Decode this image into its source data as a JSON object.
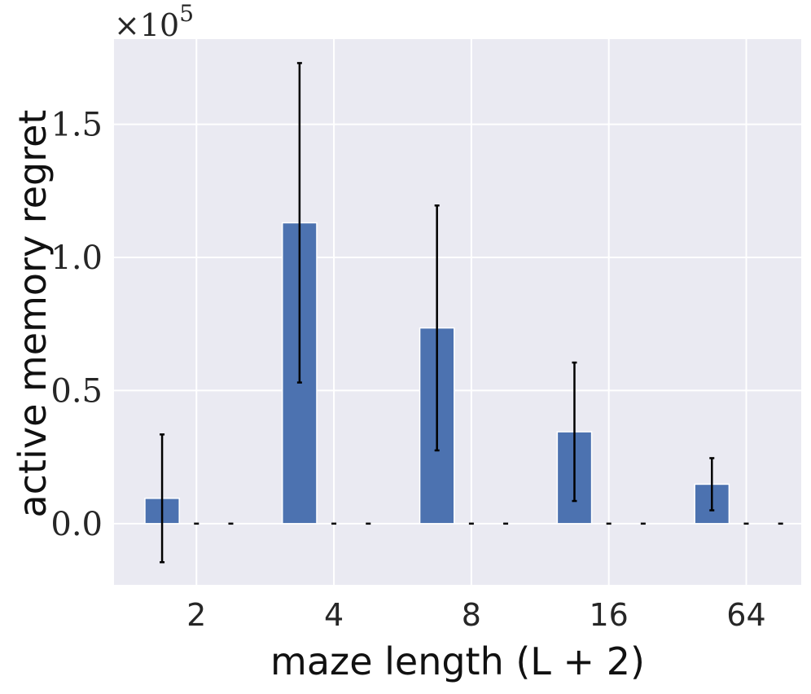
{
  "chart_data": {
    "type": "bar",
    "categories": [
      "2",
      "4",
      "8",
      "16",
      "64"
    ],
    "series": [
      {
        "values": [
          9500,
          113000,
          73500,
          34500,
          14800
        ],
        "error": [
          24000,
          60000,
          46000,
          26000,
          9800
        ],
        "color": "#4c72b0"
      },
      {
        "values": [
          0,
          0,
          0,
          0,
          0
        ],
        "error": [
          0,
          0,
          0,
          0,
          0
        ],
        "color": "#4c72b0"
      },
      {
        "values": [
          0,
          0,
          0,
          0,
          0
        ],
        "error": [
          0,
          0,
          0,
          0,
          0
        ],
        "color": "#4c72b0"
      }
    ],
    "xlabel": "maze length (L + 2)",
    "ylabel": "active memory regret",
    "y_scale_label": "×10^5",
    "y_scale_base": "×10",
    "y_scale_exp": "5",
    "y_multiplier": 100000,
    "ylim": [
      -23000,
      182000
    ],
    "yticks": [
      0,
      50000,
      100000,
      150000
    ],
    "ytick_labels": [
      "0.0",
      "0.5",
      "1.0",
      "1.5"
    ],
    "grid": true,
    "background": "#eaeaf2",
    "legend": "none"
  }
}
